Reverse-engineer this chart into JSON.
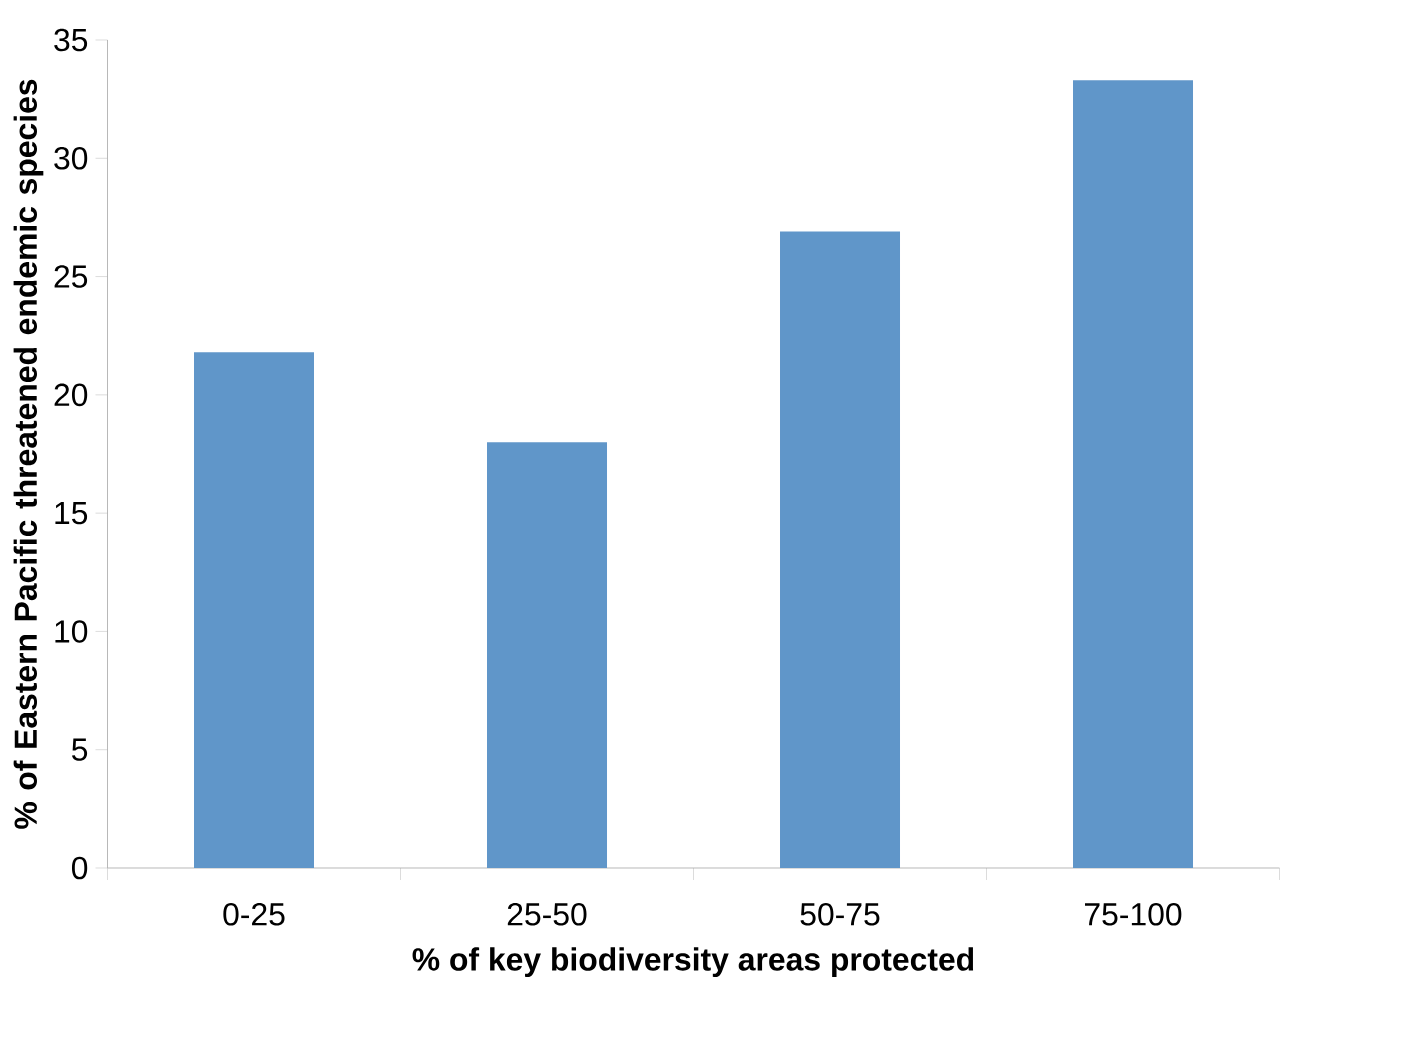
{
  "chart_data": {
    "type": "bar",
    "xlabel": "% of key biodiversity areas protected",
    "ylabel": "% of Eastern Pacific threatened endemic species",
    "categories": [
      "0-25",
      "25-50",
      "50-75",
      "75-100"
    ],
    "values": [
      21.8,
      18.0,
      26.9,
      33.3
    ],
    "color": "#6096c9",
    "ylim": [
      0,
      35
    ],
    "yticks": [
      0,
      5,
      10,
      15,
      20,
      25,
      30,
      35
    ],
    "grid": false
  }
}
